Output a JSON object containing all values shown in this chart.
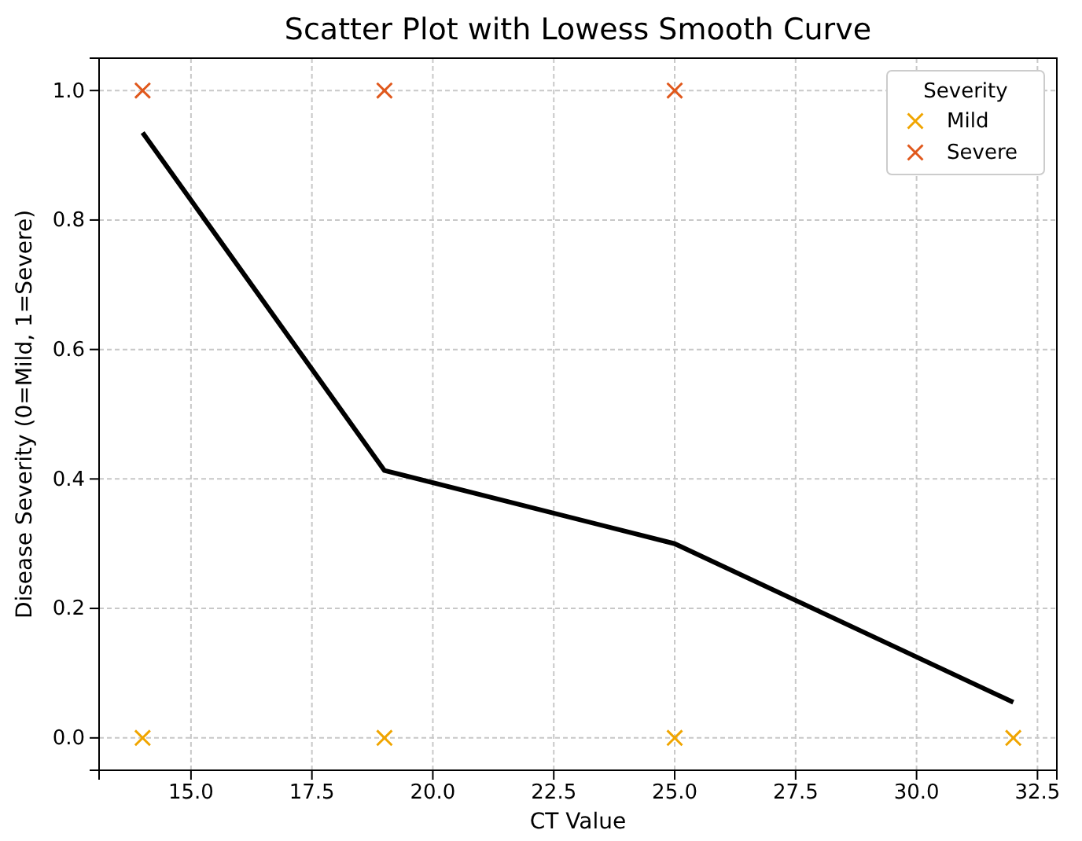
{
  "chart_data": {
    "type": "scatter",
    "title": "Scatter Plot with Lowess Smooth Curve",
    "xlabel": "CT Value",
    "ylabel": "Disease Severity (0=Mild, 1=Severe)",
    "legend_title": "Severity",
    "legend": "top right",
    "grid": true,
    "marker": "cross",
    "xlim": [
      13.1,
      32.9
    ],
    "ylim": [
      -0.05,
      1.05
    ],
    "xticks": [
      {
        "value": 15,
        "label": "15.0"
      },
      {
        "value": 17.5,
        "label": "17.5"
      },
      {
        "value": 20,
        "label": "20.0"
      },
      {
        "value": 22.5,
        "label": "22.5"
      },
      {
        "value": 25,
        "label": "25.0"
      },
      {
        "value": 27.5,
        "label": "27.5"
      },
      {
        "value": 30,
        "label": "30.0"
      },
      {
        "value": 32.5,
        "label": "32.5"
      }
    ],
    "yticks": [
      {
        "value": 0,
        "label": "0.0"
      },
      {
        "value": 0.2,
        "label": "0.2"
      },
      {
        "value": 0.4,
        "label": "0.4"
      },
      {
        "value": 0.6,
        "label": "0.6"
      },
      {
        "value": 0.8,
        "label": "0.8"
      },
      {
        "value": 1,
        "label": "1.0"
      }
    ],
    "series": [
      {
        "name": "Mild",
        "color": "#f0a500",
        "x": [
          14,
          19,
          25,
          32
        ],
        "values": [
          0,
          0,
          0,
          0
        ]
      },
      {
        "name": "Severe",
        "color": "#e0581c",
        "x": [
          14,
          19,
          25
        ],
        "values": [
          1,
          1,
          1
        ]
      },
      {
        "type": "line",
        "color": "#000000",
        "line_style": "solid",
        "marker": "none",
        "x": [
          14,
          19,
          25,
          32
        ],
        "values": [
          0.935,
          0.413,
          0.3,
          0.055
        ]
      }
    ]
  }
}
